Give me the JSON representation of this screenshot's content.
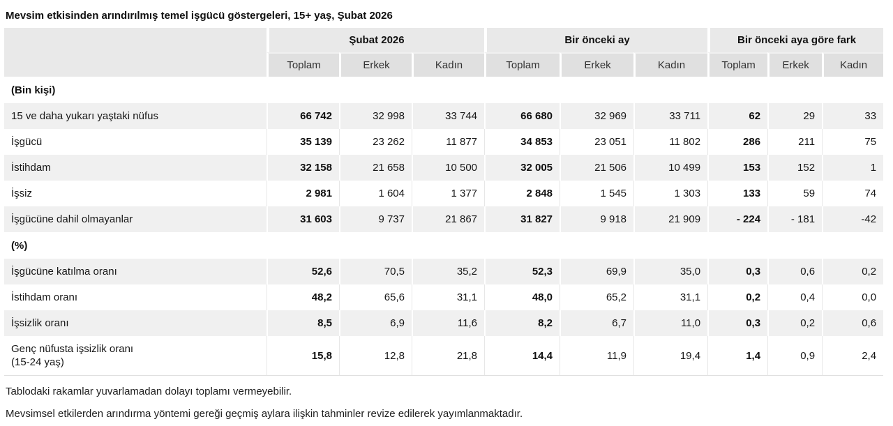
{
  "page_title": "Mevsim etkisinden arındırılmış temel işgücü göstergeleri, 15+ yaş, Şubat 2026",
  "table": {
    "col_groups": [
      {
        "label": "Şubat 2026"
      },
      {
        "label": "Bir önceki ay"
      },
      {
        "label": "Bir önceki aya göre fark"
      }
    ],
    "sub_headers": [
      "Toplam",
      "Erkek",
      "Kadın",
      "Toplam",
      "Erkek",
      "Kadın",
      "Toplam",
      "Erkek",
      "Kadın"
    ],
    "sections": [
      {
        "heading": "(Bin kişi)",
        "rows": [
          {
            "label": "15 ve daha yukarı yaştaki nüfus",
            "values": [
              "66 742",
              "32 998",
              "33 744",
              "66 680",
              "32 969",
              "33 711",
              "62",
              "29",
              "33"
            ]
          },
          {
            "label": "İşgücü",
            "values": [
              "35 139",
              "23 262",
              "11 877",
              "34 853",
              "23 051",
              "11 802",
              "286",
              "211",
              "75"
            ]
          },
          {
            "label": "İstihdam",
            "values": [
              "32 158",
              "21 658",
              "10 500",
              "32 005",
              "21 506",
              "10 499",
              "153",
              "152",
              "1"
            ]
          },
          {
            "label": "İşsiz",
            "values": [
              "2 981",
              "1 604",
              "1 377",
              "2 848",
              "1 545",
              "1 303",
              "133",
              "59",
              "74"
            ]
          },
          {
            "label": "İşgücüne dahil olmayanlar",
            "values": [
              "31 603",
              "9 737",
              "21 867",
              "31 827",
              "9 918",
              "21 909",
              "- 224",
              "- 181",
              "-42"
            ]
          }
        ]
      },
      {
        "heading": "(%)",
        "rows": [
          {
            "label": "İşgücüne katılma oranı",
            "values": [
              "52,6",
              "70,5",
              "35,2",
              "52,3",
              "69,9",
              "35,0",
              "0,3",
              "0,6",
              "0,2"
            ]
          },
          {
            "label": "İstihdam oranı",
            "values": [
              "48,2",
              "65,6",
              "31,1",
              "48,0",
              "65,2",
              "31,1",
              "0,2",
              "0,4",
              "0,0"
            ]
          },
          {
            "label": "İşsizlik oranı",
            "values": [
              "8,5",
              "6,9",
              "11,6",
              "8,2",
              "6,7",
              "11,0",
              "0,3",
              "0,2",
              "0,6"
            ]
          },
          {
            "label": "Genç nüfusta işsizlik oranı\n(15-24 yaş)",
            "values": [
              "15,8",
              "12,8",
              "21,8",
              "14,4",
              "11,9",
              "19,4",
              "1,4",
              "0,9",
              "2,4"
            ]
          }
        ]
      }
    ]
  },
  "footnotes": [
    "Tablodaki rakamlar yuvarlamadan dolayı toplamı vermeyebilir.",
    "Mevsimsel etkilerden arındırma yöntemi gereği geçmiş aylara ilişkin tahminler revize edilerek yayımlanmaktadır."
  ],
  "colors": {
    "group_header_bg": "#e9e9e9",
    "sub_header_bg": "#e0e0e0",
    "stripe_row_bg": "#f0f0f0",
    "plain_row_bg": "#ffffff",
    "text": "#171717"
  },
  "chart_data": {
    "type": "table",
    "title": "Mevsim etkisinden arındırılmış temel işgücü göstergeleri, 15+ yaş, Şubat 2026",
    "column_groups": [
      "Şubat 2026",
      "Bir önceki ay",
      "Bir önceki aya göre fark"
    ],
    "columns": [
      "Toplam",
      "Erkek",
      "Kadın",
      "Toplam",
      "Erkek",
      "Kadın",
      "Toplam",
      "Erkek",
      "Kadın"
    ],
    "units": {
      "(Bin kişi)": "thousand persons",
      "(%)": "percent"
    },
    "rows": [
      {
        "section": "(Bin kişi)",
        "indicator": "15 ve daha yukarı yaştaki nüfus",
        "values": [
          66742,
          32998,
          33744,
          66680,
          32969,
          33711,
          62,
          29,
          33
        ]
      },
      {
        "section": "(Bin kişi)",
        "indicator": "İşgücü",
        "values": [
          35139,
          23262,
          11877,
          34853,
          23051,
          11802,
          286,
          211,
          75
        ]
      },
      {
        "section": "(Bin kişi)",
        "indicator": "İstihdam",
        "values": [
          32158,
          21658,
          10500,
          32005,
          21506,
          10499,
          153,
          152,
          1
        ]
      },
      {
        "section": "(Bin kişi)",
        "indicator": "İşsiz",
        "values": [
          2981,
          1604,
          1377,
          2848,
          1545,
          1303,
          133,
          59,
          74
        ]
      },
      {
        "section": "(Bin kişi)",
        "indicator": "İşgücüne dahil olmayanlar",
        "values": [
          31603,
          9737,
          21867,
          31827,
          9918,
          21909,
          -224,
          -181,
          -42
        ]
      },
      {
        "section": "(%)",
        "indicator": "İşgücüne katılma oranı",
        "values": [
          52.6,
          70.5,
          35.2,
          52.3,
          69.9,
          35.0,
          0.3,
          0.6,
          0.2
        ]
      },
      {
        "section": "(%)",
        "indicator": "İstihdam oranı",
        "values": [
          48.2,
          65.6,
          31.1,
          48.0,
          65.2,
          31.1,
          0.2,
          0.4,
          0.0
        ]
      },
      {
        "section": "(%)",
        "indicator": "İşsizlik oranı",
        "values": [
          8.5,
          6.9,
          11.6,
          8.2,
          6.7,
          11.0,
          0.3,
          0.2,
          0.6
        ]
      },
      {
        "section": "(%)",
        "indicator": "Genç nüfusta işsizlik oranı (15-24 yaş)",
        "values": [
          15.8,
          12.8,
          21.8,
          14.4,
          11.9,
          19.4,
          1.4,
          0.9,
          2.4
        ]
      }
    ]
  }
}
